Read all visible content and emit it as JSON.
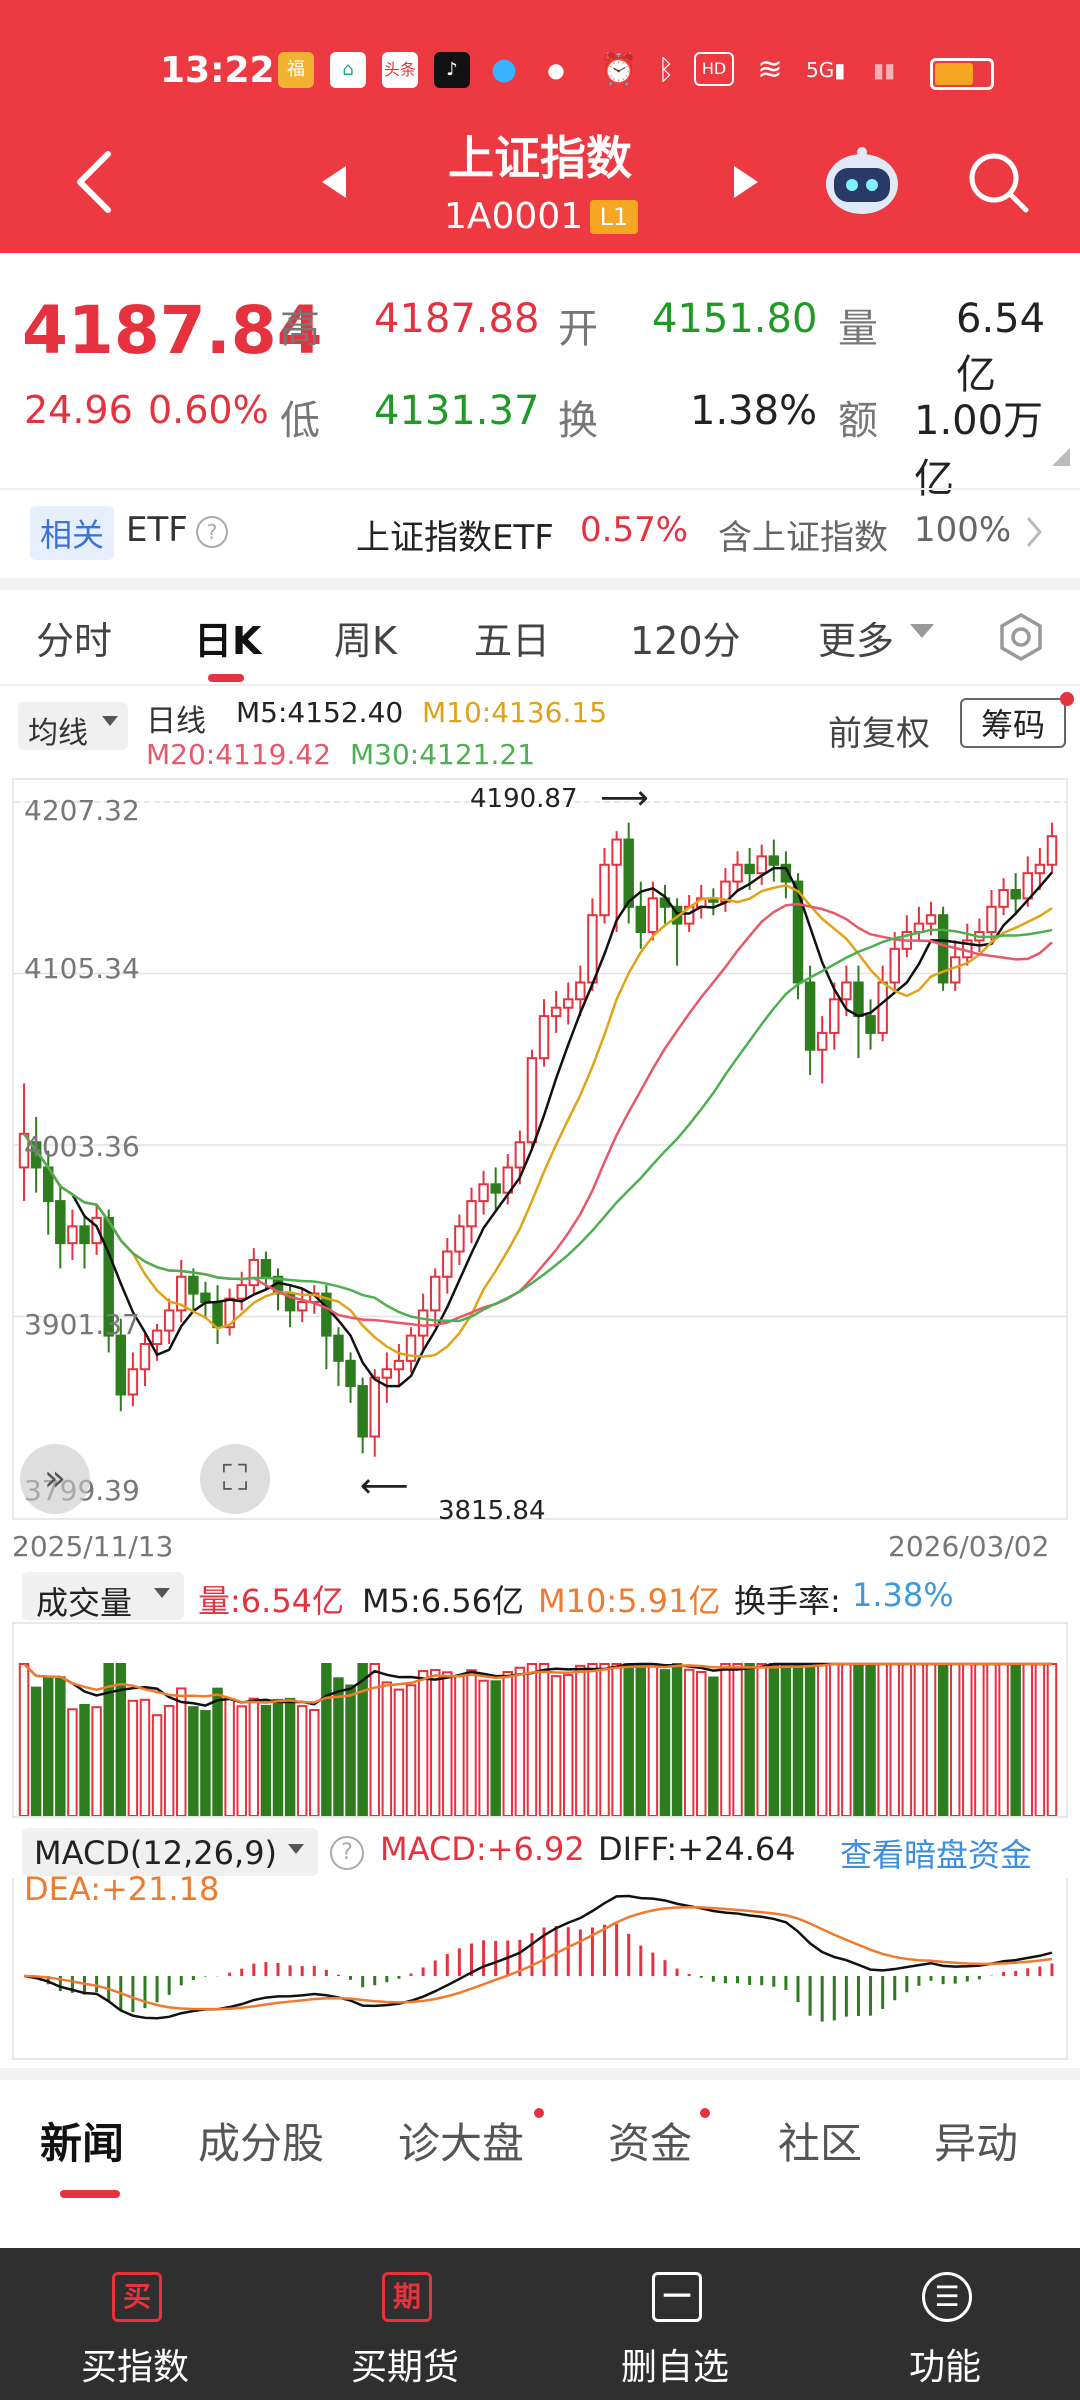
{
  "status": {
    "time": "13:22"
  },
  "header": {
    "title": "上证指数",
    "code": "1A0001",
    "level": "L1"
  },
  "quote": {
    "price": "4187.84",
    "change": "24.96",
    "change_pct": "0.60%",
    "high_label": "高",
    "high": "4187.88",
    "open_label": "开",
    "open": "4151.80",
    "vol_label": "量",
    "vol": "6.54亿",
    "low_label": "低",
    "low": "4131.37",
    "turn_label": "换",
    "turn": "1.38%",
    "amt_label": "额",
    "amt": "1.00万亿"
  },
  "etf": {
    "tag": "相关",
    "name": "ETF",
    "fund": "上证指数ETF",
    "fund_pct": "0.57%",
    "contains": "含上证指数",
    "weight": "100%"
  },
  "ktabs": [
    "分时",
    "日K",
    "周K",
    "五日",
    "120分",
    "更多"
  ],
  "kline": {
    "ma_select": "均线",
    "day_label": "日线",
    "m5": "M5:4152.40",
    "m10": "M10:4136.15",
    "m20": "M20:4119.42",
    "m30": "M30:4121.21",
    "fq": "前复权",
    "chips": "筹码",
    "y_ticks": [
      "4207.32",
      "4105.34",
      "4003.36",
      "3901.37",
      "3799.39"
    ],
    "max_label": "4190.87",
    "min_label": "3815.84",
    "date_start": "2025/11/13",
    "date_end": "2026/03/02"
  },
  "volume": {
    "select": "成交量",
    "vol": "量:6.54亿",
    "m5": "M5:6.56亿",
    "m10": "M10:5.91亿",
    "turn_label": "换手率:",
    "turn": "1.38%"
  },
  "macd": {
    "select": "MACD(12,26,9)",
    "macd": "MACD:+6.92",
    "diff": "DIFF:+24.64",
    "link": "查看暗盘资金",
    "dea": "DEA:+21.18"
  },
  "btabs": [
    "新闻",
    "成分股",
    "诊大盘",
    "资金",
    "社区",
    "异动"
  ],
  "bottom": [
    {
      "icon": "买",
      "label": "买指数"
    },
    {
      "icon": "期",
      "label": "买期货"
    },
    {
      "icon": "一",
      "label": "删自选"
    },
    {
      "icon": "☰",
      "label": "功能"
    }
  ],
  "chart_data": {
    "type": "candlestick",
    "x_start": "2025/11/13",
    "x_end": "2026/03/02",
    "ylim": [
      3799.39,
      4207.32
    ],
    "candles": [
      [
        3990,
        4010,
        3970,
        4040
      ],
      [
        4005,
        3990,
        3975,
        4020
      ],
      [
        3990,
        3970,
        3950,
        4000
      ],
      [
        3970,
        3945,
        3930,
        3980
      ],
      [
        3945,
        3955,
        3935,
        3965
      ],
      [
        3955,
        3945,
        3930,
        3962
      ],
      [
        3945,
        3960,
        3938,
        3968
      ],
      [
        3960,
        3890,
        3880,
        3965
      ],
      [
        3890,
        3855,
        3845,
        3900
      ],
      [
        3855,
        3870,
        3848,
        3880
      ],
      [
        3870,
        3885,
        3860,
        3892
      ],
      [
        3885,
        3893,
        3875,
        3897
      ],
      [
        3893,
        3905,
        3885,
        3912
      ],
      [
        3905,
        3925,
        3898,
        3935
      ],
      [
        3925,
        3915,
        3905,
        3930
      ],
      [
        3915,
        3910,
        3900,
        3922
      ],
      [
        3910,
        3895,
        3885,
        3920
      ],
      [
        3895,
        3912,
        3890,
        3918
      ],
      [
        3912,
        3920,
        3905,
        3928
      ],
      [
        3920,
        3935,
        3915,
        3942
      ],
      [
        3935,
        3925,
        3918,
        3940
      ],
      [
        3925,
        3915,
        3905,
        3930
      ],
      [
        3915,
        3905,
        3895,
        3920
      ],
      [
        3905,
        3910,
        3898,
        3918
      ],
      [
        3910,
        3915,
        3903,
        3920
      ],
      [
        3915,
        3890,
        3870,
        3920
      ],
      [
        3890,
        3875,
        3860,
        3895
      ],
      [
        3875,
        3860,
        3850,
        3880
      ],
      [
        3860,
        3830,
        3820,
        3865
      ],
      [
        3830,
        3865,
        3818,
        3870
      ],
      [
        3865,
        3870,
        3850,
        3880
      ],
      [
        3870,
        3875,
        3860,
        3885
      ],
      [
        3875,
        3890,
        3868,
        3895
      ],
      [
        3890,
        3905,
        3880,
        3915
      ],
      [
        3905,
        3925,
        3895,
        3930
      ],
      [
        3925,
        3940,
        3915,
        3948
      ],
      [
        3940,
        3955,
        3932,
        3962
      ],
      [
        3955,
        3970,
        3945,
        3978
      ],
      [
        3970,
        3980,
        3962,
        3988
      ],
      [
        3980,
        3975,
        3965,
        3990
      ],
      [
        3975,
        3990,
        3968,
        3998
      ],
      [
        3990,
        4005,
        3980,
        4012
      ],
      [
        4005,
        4055,
        4000,
        4060
      ],
      [
        4055,
        4080,
        4050,
        4090
      ],
      [
        4080,
        4085,
        4070,
        4095
      ],
      [
        4085,
        4090,
        4075,
        4100
      ],
      [
        4090,
        4100,
        4080,
        4110
      ],
      [
        4100,
        4140,
        4095,
        4150
      ],
      [
        4140,
        4170,
        4135,
        4180
      ],
      [
        4170,
        4185,
        4130,
        4190
      ],
      [
        4185,
        4145,
        4135,
        4195
      ],
      [
        4145,
        4130,
        4120,
        4160
      ],
      [
        4130,
        4150,
        4125,
        4160
      ],
      [
        4150,
        4145,
        4135,
        4158
      ],
      [
        4145,
        4135,
        4110,
        4150
      ],
      [
        4135,
        4145,
        4130,
        4152
      ],
      [
        4145,
        4150,
        4138,
        4158
      ],
      [
        4150,
        4148,
        4140,
        4156
      ],
      [
        4148,
        4160,
        4142,
        4168
      ],
      [
        4160,
        4170,
        4155,
        4178
      ],
      [
        4170,
        4165,
        4155,
        4180
      ],
      [
        4165,
        4175,
        4158,
        4182
      ],
      [
        4175,
        4170,
        4160,
        4185
      ],
      [
        4170,
        4160,
        4150,
        4178
      ],
      [
        4160,
        4100,
        4090,
        4165
      ],
      [
        4100,
        4060,
        4045,
        4110
      ],
      [
        4060,
        4070,
        4040,
        4080
      ],
      [
        4070,
        4090,
        4060,
        4100
      ],
      [
        4090,
        4100,
        4080,
        4110
      ],
      [
        4100,
        4080,
        4055,
        4110
      ],
      [
        4080,
        4070,
        4060,
        4090
      ],
      [
        4070,
        4100,
        4065,
        4110
      ],
      [
        4100,
        4120,
        4095,
        4130
      ],
      [
        4120,
        4130,
        4115,
        4140
      ],
      [
        4130,
        4135,
        4125,
        4145
      ],
      [
        4135,
        4140,
        4128,
        4148
      ],
      [
        4140,
        4100,
        4095,
        4145
      ],
      [
        4100,
        4115,
        4095,
        4125
      ],
      [
        4115,
        4125,
        4110,
        4135
      ],
      [
        4125,
        4130,
        4118,
        4138
      ],
      [
        4130,
        4145,
        4125,
        4155
      ],
      [
        4145,
        4155,
        4140,
        4162
      ],
      [
        4155,
        4150,
        4140,
        4165
      ],
      [
        4150,
        4165,
        4145,
        4175
      ],
      [
        4165,
        4170,
        4155,
        4180
      ],
      [
        4170,
        4187,
        4165,
        4195
      ]
    ]
  }
}
